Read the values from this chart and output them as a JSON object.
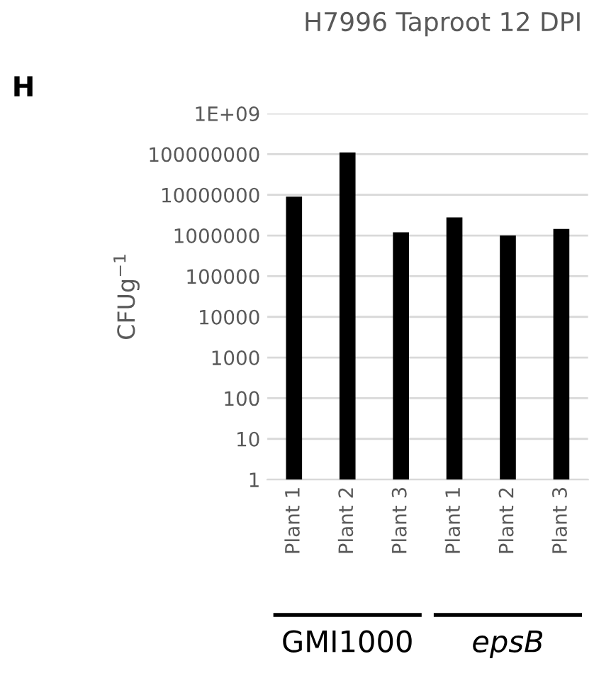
{
  "chart_data": {
    "type": "bar",
    "title": "H7996 Taproot 12 DPI",
    "ylabel": "CFUg$^{−1}$",
    "categories": [
      "Plant 1",
      "Plant 2",
      "Plant 3",
      "Plant 1",
      "Plant 2",
      "Plant 3"
    ],
    "values": [
      9000000,
      110000000,
      1200000,
      2800000,
      1000000,
      1450000
    ],
    "color": "#000000",
    "log": true,
    "ylim": [
      1,
      1000000000
    ],
    "yticks": [
      1,
      10,
      100,
      1000,
      10000,
      100000,
      1000000,
      10000000,
      100000000,
      {
        "value": 1000000000,
        "label": "1E+09"
      }
    ],
    "grid": "y",
    "annotations": [
      "H",
      "GMI1000",
      "epsB"
    ]
  }
}
